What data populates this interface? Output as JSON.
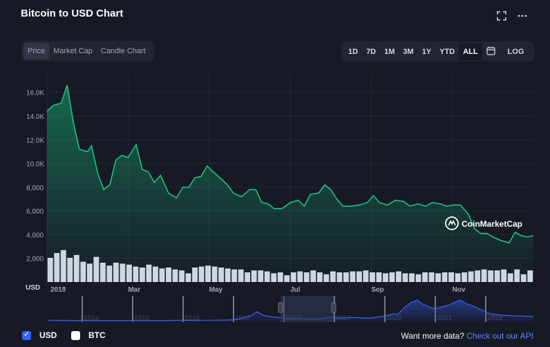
{
  "header": {
    "title": "Bitcoin to USD Chart",
    "fullscreen_icon": "fullscreen-icon",
    "more_icon": "more-icon"
  },
  "chart_tabs": [
    "Price",
    "Market Cap",
    "Candle Chart"
  ],
  "range_tabs": [
    "1D",
    "7D",
    "1M",
    "3M",
    "1Y",
    "YTD",
    "ALL"
  ],
  "range_active": "ALL",
  "calendar_icon": "calendar-icon",
  "log_label": "LOG",
  "watermark": "CoinMarketCap",
  "colors": {
    "line": "#16c784",
    "volume": "#cfd6e4",
    "navigator": "#3861fb",
    "background": "#171924"
  },
  "chart_data": {
    "type": "line",
    "title": "Bitcoin to USD Chart",
    "ylabel": "USD",
    "ylim": [
      0,
      17500
    ],
    "yticks": [
      2000,
      4000,
      6000,
      8000,
      10000,
      12000,
      14000,
      16000
    ],
    "ytick_labels": [
      "2,000",
      "4,000",
      "6,000",
      "8,000",
      "10.0K",
      "12.0K",
      "14.0K",
      "16.0K"
    ],
    "xlim": [
      0,
      12
    ],
    "x_ticks": [
      {
        "x": 0.0,
        "label": "2018"
      },
      {
        "x": 2.0,
        "label": "Mar"
      },
      {
        "x": 4.0,
        "label": "May"
      },
      {
        "x": 6.0,
        "label": "Jul"
      },
      {
        "x": 8.0,
        "label": "Sep"
      },
      {
        "x": 10.0,
        "label": "Nov"
      }
    ],
    "series": [
      {
        "name": "Price (USD)",
        "x": [
          0.0,
          0.15,
          0.35,
          0.5,
          0.65,
          0.8,
          1.0,
          1.1,
          1.25,
          1.4,
          1.55,
          1.7,
          1.85,
          2.0,
          2.2,
          2.35,
          2.5,
          2.65,
          2.8,
          3.0,
          3.2,
          3.35,
          3.5,
          3.65,
          3.8,
          3.95,
          4.1,
          4.3,
          4.45,
          4.6,
          4.8,
          5.0,
          5.15,
          5.3,
          5.45,
          5.6,
          5.8,
          6.0,
          6.2,
          6.35,
          6.5,
          6.7,
          6.85,
          7.0,
          7.15,
          7.3,
          7.5,
          7.7,
          7.9,
          8.05,
          8.2,
          8.4,
          8.6,
          8.8,
          8.95,
          9.15,
          9.35,
          9.5,
          9.7,
          9.85,
          10.05,
          10.2,
          10.4,
          10.55,
          10.7,
          10.85,
          11.0,
          11.2,
          11.4,
          11.55,
          11.7,
          11.85,
          12.0
        ],
        "values": [
          14400,
          14900,
          15100,
          16600,
          13500,
          11200,
          11000,
          11500,
          9200,
          7800,
          8200,
          10300,
          10700,
          10500,
          11600,
          9500,
          9300,
          8400,
          9000,
          7500,
          7100,
          8000,
          8000,
          8800,
          8900,
          9800,
          9300,
          8700,
          8200,
          7500,
          7200,
          7800,
          7800,
          6700,
          6600,
          6200,
          6200,
          6700,
          6900,
          6400,
          7400,
          7500,
          8200,
          7800,
          7000,
          6400,
          6400,
          6500,
          6700,
          7300,
          6700,
          6500,
          6900,
          6800,
          6400,
          6600,
          6400,
          6700,
          6600,
          6400,
          6500,
          6500,
          5700,
          4500,
          4100,
          4100,
          3800,
          3500,
          3300,
          4200,
          3900,
          3800,
          3900
        ]
      }
    ],
    "volume_bars": [
      2.5,
      3.0,
      3.3,
      2.5,
      2.8,
      2.1,
      1.9,
      2.6,
      2.0,
      1.7,
      2.0,
      1.9,
      1.8,
      1.6,
      1.5,
      1.8,
      1.6,
      1.4,
      1.5,
      1.3,
      1.2,
      0.9,
      1.5,
      1.6,
      1.7,
      1.6,
      1.5,
      1.4,
      1.3,
      1.3,
      1.0,
      1.2,
      1.2,
      1.1,
      0.9,
      1.0,
      0.7,
      1.0,
      1.1,
      1.0,
      1.2,
      1.0,
      0.8,
      1.1,
      1.0,
      1.0,
      1.1,
      1.1,
      1.2,
      1.0,
      1.0,
      0.9,
      1.0,
      1.1,
      0.9,
      0.9,
      0.8,
      1.0,
      1.0,
      0.9,
      1.0,
      1.0,
      0.9,
      1.0,
      1.1,
      1.2,
      1.3,
      1.2,
      1.2,
      1.3,
      0.9,
      1.3,
      0.8,
      1.2
    ],
    "navigator": {
      "years": [
        "2014",
        "2015",
        "2016",
        "2017",
        "2018",
        "2019",
        "2020",
        "2021",
        "2022"
      ],
      "selected_range": [
        "2018",
        "2019"
      ],
      "values": [
        0.3,
        0.3,
        0.3,
        0.25,
        0.2,
        0.2,
        0.2,
        0.2,
        0.2,
        0.2,
        0.2,
        0.2,
        0.2,
        0.2,
        0.2,
        0.2,
        0.2,
        0.2,
        0.2,
        0.2,
        0.25,
        0.3,
        0.3,
        0.3,
        0.3,
        0.35,
        0.35,
        0.4,
        0.4,
        0.5,
        0.7,
        1.2,
        2.5,
        3.5,
        6.5,
        4.0,
        3.0,
        2.5,
        2.0,
        1.8,
        1.5,
        1.4,
        1.3,
        1.2,
        1.3,
        1.8,
        2.5,
        2.0,
        2.0,
        2.2,
        2.5,
        2.0,
        1.8,
        2.2,
        2.8,
        3.5,
        4.8,
        5.0,
        9.5,
        13,
        15,
        12,
        10,
        8.5,
        10,
        11,
        13,
        15,
        12.5,
        11,
        9,
        7,
        5,
        4.5,
        4.0,
        3.8,
        3.5,
        3.4,
        3.2,
        3.0
      ]
    }
  },
  "legend": {
    "usd": "USD",
    "btc": "BTC"
  },
  "footer": {
    "prefix": "Want more data? ",
    "link": "Check out our API"
  }
}
